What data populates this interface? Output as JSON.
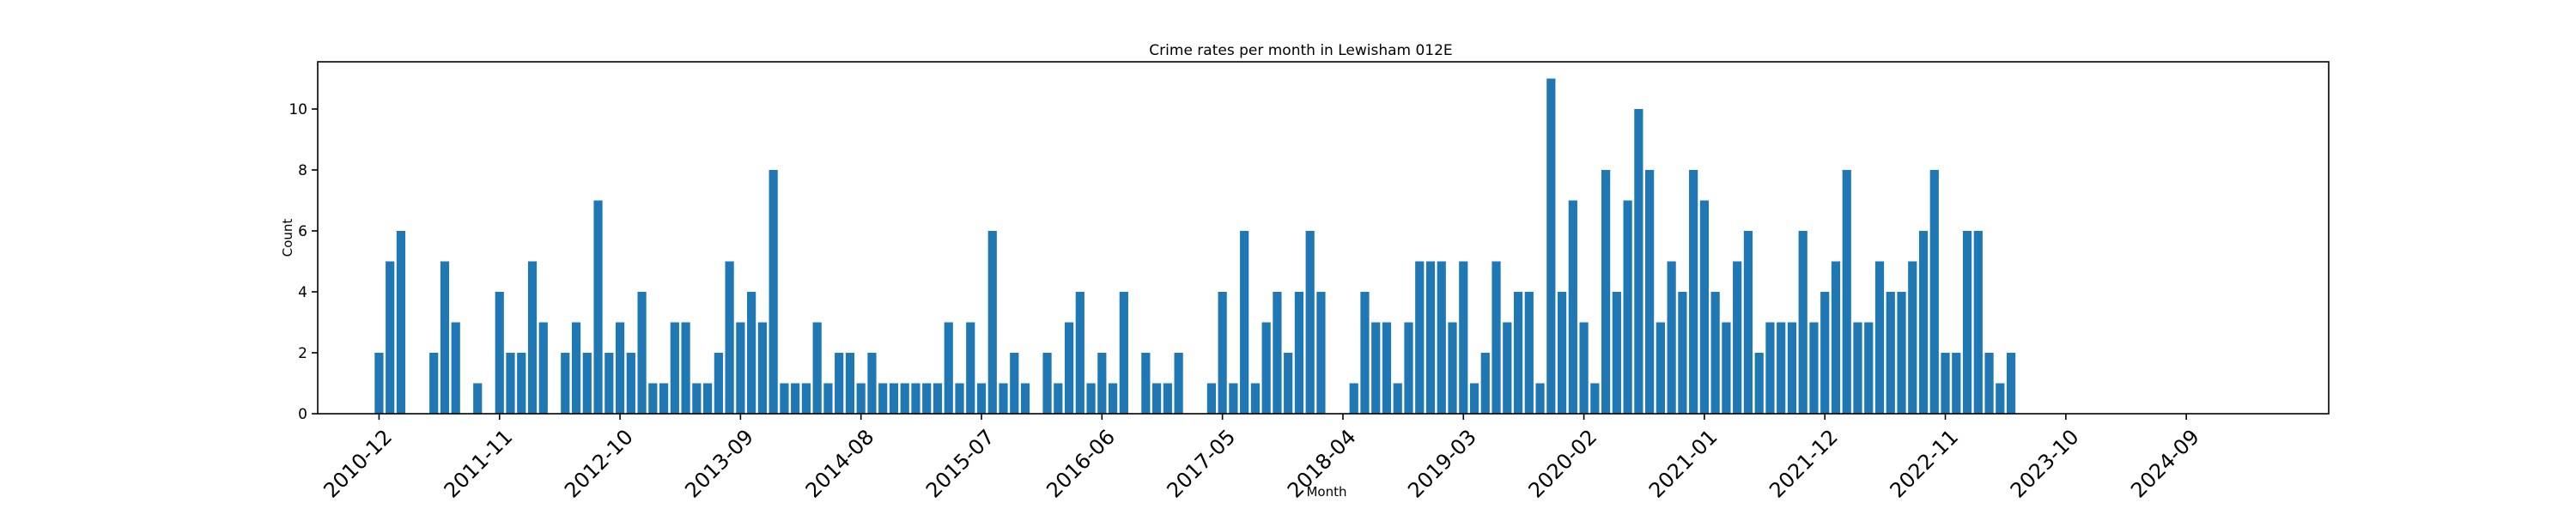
{
  "chart_data": {
    "type": "bar",
    "title": "Crime rates per month in Lewisham 012E",
    "xlabel": "Month",
    "ylabel": "Count",
    "ylim": [
      0,
      11.55
    ],
    "yticks": [
      0,
      2,
      4,
      6,
      8,
      10
    ],
    "xticks": [
      "2010-12",
      "2011-11",
      "2012-10",
      "2013-09",
      "2014-08",
      "2015-07",
      "2016-06",
      "2017-05",
      "2018-04",
      "2019-03",
      "2020-02",
      "2021-01",
      "2021-12",
      "2022-11",
      "2023-10",
      "2024-09"
    ],
    "categories": [
      "2010-12",
      "2011-01",
      "2011-02",
      "2011-03",
      "2011-04",
      "2011-05",
      "2011-06",
      "2011-07",
      "2011-08",
      "2011-09",
      "2011-10",
      "2011-11",
      "2011-12",
      "2012-01",
      "2012-02",
      "2012-03",
      "2012-04",
      "2012-05",
      "2012-06",
      "2012-07",
      "2012-08",
      "2012-09",
      "2012-10",
      "2012-11",
      "2012-12",
      "2013-01",
      "2013-02",
      "2013-03",
      "2013-04",
      "2013-05",
      "2013-06",
      "2013-07",
      "2013-08",
      "2013-09",
      "2013-10",
      "2013-11",
      "2013-12",
      "2014-01",
      "2014-02",
      "2014-03",
      "2014-04",
      "2014-05",
      "2014-06",
      "2014-07",
      "2014-08",
      "2014-09",
      "2014-10",
      "2014-11",
      "2014-12",
      "2015-01",
      "2015-02",
      "2015-03",
      "2015-04",
      "2015-05",
      "2015-06",
      "2015-07",
      "2015-08",
      "2015-09",
      "2015-10",
      "2015-11",
      "2015-12",
      "2016-01",
      "2016-02",
      "2016-03",
      "2016-04",
      "2016-05",
      "2016-06",
      "2016-07",
      "2016-08",
      "2016-09",
      "2016-10",
      "2016-11",
      "2016-12",
      "2017-01",
      "2017-02",
      "2017-03",
      "2017-04",
      "2017-05",
      "2017-06",
      "2017-07",
      "2017-08",
      "2017-09",
      "2017-10",
      "2017-11",
      "2017-12",
      "2018-01",
      "2018-02",
      "2018-03",
      "2018-04",
      "2018-05",
      "2018-06",
      "2018-07",
      "2018-08",
      "2018-09",
      "2018-10",
      "2018-11",
      "2018-12",
      "2019-01",
      "2019-02",
      "2019-03",
      "2019-04",
      "2019-05",
      "2019-06",
      "2019-07",
      "2019-08",
      "2019-09",
      "2019-10",
      "2019-11",
      "2019-12",
      "2020-01",
      "2020-02",
      "2020-03",
      "2020-04",
      "2020-05",
      "2020-06",
      "2020-07",
      "2020-08",
      "2020-09",
      "2020-10",
      "2020-11",
      "2020-12",
      "2021-01",
      "2021-02",
      "2021-03",
      "2021-04",
      "2021-05",
      "2021-06",
      "2021-07",
      "2021-08",
      "2021-09",
      "2021-10",
      "2021-11",
      "2021-12",
      "2022-01",
      "2022-02",
      "2022-03",
      "2022-04",
      "2022-05",
      "2022-06",
      "2022-07",
      "2022-08",
      "2022-09",
      "2022-10",
      "2022-11",
      "2022-12",
      "2023-01",
      "2023-02",
      "2023-03",
      "2023-04",
      "2023-05"
    ],
    "values": [
      2,
      5,
      6,
      0,
      0,
      2,
      5,
      3,
      0,
      1,
      0,
      4,
      2,
      2,
      5,
      3,
      0,
      2,
      3,
      2,
      7,
      2,
      3,
      2,
      4,
      1,
      1,
      3,
      3,
      1,
      1,
      2,
      5,
      3,
      4,
      3,
      8,
      1,
      1,
      1,
      3,
      1,
      2,
      2,
      1,
      2,
      1,
      1,
      1,
      1,
      1,
      1,
      3,
      1,
      3,
      1,
      6,
      1,
      2,
      1,
      0,
      2,
      1,
      3,
      4,
      1,
      2,
      1,
      4,
      0,
      2,
      1,
      1,
      2,
      0,
      0,
      1,
      4,
      1,
      6,
      1,
      3,
      4,
      2,
      4,
      6,
      4,
      0,
      0,
      1,
      4,
      3,
      3,
      1,
      3,
      5,
      5,
      5,
      3,
      5,
      1,
      2,
      5,
      3,
      4,
      4,
      1,
      11,
      4,
      7,
      3,
      1,
      8,
      4,
      7,
      10,
      8,
      3,
      5,
      4,
      8,
      7,
      4,
      3,
      5,
      6,
      2,
      3,
      3,
      3,
      6,
      3,
      4,
      5,
      8,
      3,
      3,
      5,
      4,
      4,
      5,
      6,
      8,
      2,
      2,
      6,
      6,
      2,
      1,
      2
    ],
    "grid": false,
    "legend": "none",
    "bar_color": "#1f77b4"
  }
}
